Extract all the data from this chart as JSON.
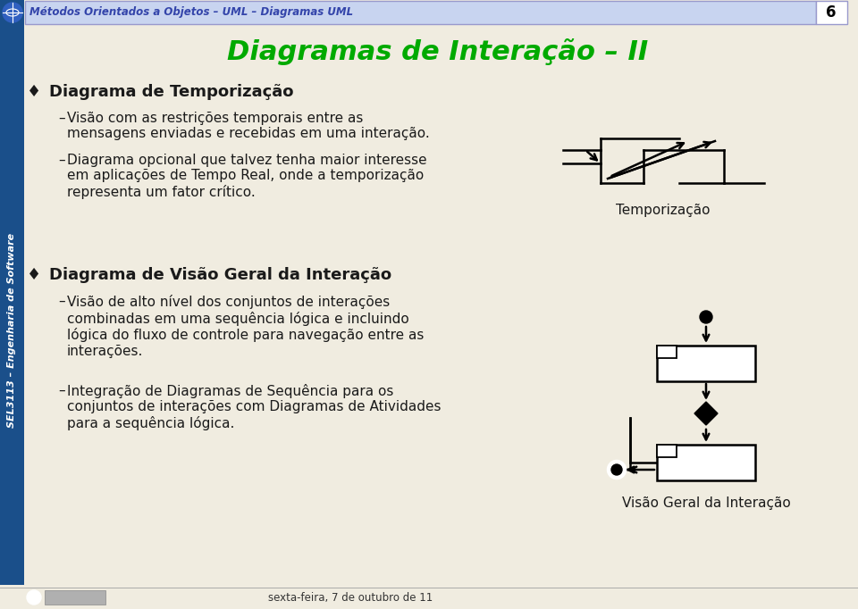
{
  "bg_color": "#f0ece0",
  "header_bg": "#c8d4f0",
  "header_text": "Métodos Orientados a Objetos – UML – Diagramas UML",
  "header_num": "6",
  "sidebar_color": "#1a4f8a",
  "sidebar_text": "SEL3113 – Engenharia de Software",
  "title": "Diagramas de Interação – II",
  "title_color": "#00aa00",
  "bullet1_head": "Diagrama de Temporização",
  "bullet1_sub1": "Visão com as restrições temporais entre as\nmensagens enviadas e recebidas em uma interação.",
  "bullet1_sub2": "Diagrama opcional que talvez tenha maior interesse\nem aplicações de Tempo Real, onde a temporização\nrepresenta um fator crítico.",
  "bullet2_head": "Diagrama de Visão Geral da Interação",
  "bullet2_sub1": "Visão de alto nível dos conjuntos de interações\ncombinadas em uma sequência lógica e incluindo\nlógica do fluxo de controle para navegação entre as\ninteracões.",
  "bullet2_sub2": "Integração de Diagramas de Sequência para os\nconjuntos de interações com Diagramas de Atividades\npara a sequência lógica.",
  "caption1": "Temporização",
  "caption2": "Visão Geral da Interação",
  "footer_text": "sexta-feira, 7 de outubro de 11",
  "text_color": "#1a1a1a",
  "bullet_color": "#1a1a1a"
}
